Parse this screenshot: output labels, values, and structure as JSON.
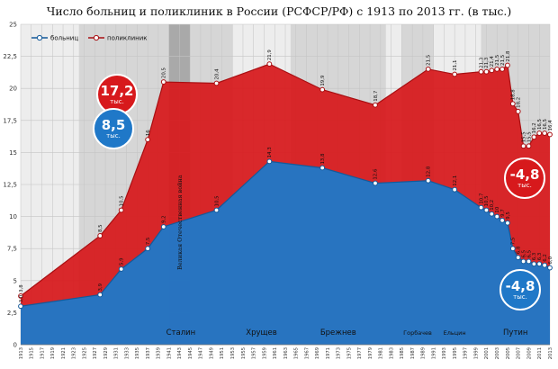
{
  "chart_data": {
    "type": "area",
    "title": "Число больниц и поликлиник в России (РСФСР/РФ) с 1913 по 2013 гг. (в тыс.)",
    "ylim": [
      0,
      25
    ],
    "yticks": [
      "0",
      "2,5",
      "5",
      "7,5",
      "10",
      "12,5",
      "15",
      "17,5",
      "20",
      "22,5",
      "25"
    ],
    "xlim": [
      1913,
      2013
    ],
    "xticks": [
      "1913",
      "1915",
      "1917",
      "1919",
      "1921",
      "1923",
      "1925",
      "1927",
      "1929",
      "1931",
      "1933",
      "1935",
      "1937",
      "1939",
      "1941",
      "1943",
      "1945",
      "1947",
      "1949",
      "1951",
      "1953",
      "1955",
      "1957",
      "1959",
      "1961",
      "1963",
      "1965",
      "1967",
      "1969",
      "1971",
      "1973",
      "1975",
      "1977",
      "1979",
      "1981",
      "1983",
      "1985",
      "1987",
      "1989",
      "1991",
      "1993",
      "1995",
      "1997",
      "1999",
      "2001",
      "2003",
      "2005",
      "2007",
      "2009",
      "2011",
      "2013"
    ],
    "grid": true,
    "legend": {
      "placement": "top-left",
      "entries": [
        "больниц",
        "поликлиник"
      ]
    },
    "series": [
      {
        "name": "больниц",
        "color": "#1f78c8",
        "x": [
          1913,
          1928,
          1932,
          1937,
          1940,
          1950,
          1960,
          1970,
          1980,
          1990,
          1995,
          2000,
          2001,
          2002,
          2003,
          2004,
          2005,
          2006,
          2007,
          2008,
          2009,
          2010,
          2011,
          2012,
          2013
        ],
        "values": [
          3.0,
          3.9,
          5.9,
          7.5,
          9.2,
          10.5,
          14.3,
          13.8,
          12.6,
          12.8,
          12.1,
          10.7,
          10.5,
          10.2,
          10.0,
          9.7,
          9.5,
          7.5,
          6.8,
          6.5,
          6.5,
          6.3,
          6.3,
          6.2,
          6.0
        ],
        "labels": [
          "3,0",
          "3,9",
          "5,9",
          "7,5",
          "9,2",
          "10,5",
          "14,3",
          "13,8",
          "12,6",
          "12,8",
          "12,1",
          "10,7",
          "10,5",
          "10,2",
          "10",
          "9,7",
          "9,5",
          "7,5",
          "6,8",
          "6,5",
          "6,5",
          "6,3",
          "6,3",
          "6,2",
          "6,0"
        ]
      },
      {
        "name": "поликлиник",
        "color": "#d7191c",
        "x": [
          1913,
          1928,
          1932,
          1937,
          1940,
          1950,
          1960,
          1970,
          1980,
          1990,
          1995,
          2000,
          2001,
          2002,
          2003,
          2004,
          2005,
          2006,
          2007,
          2008,
          2009,
          2010,
          2011,
          2012,
          2013
        ],
        "values": [
          3.8,
          8.5,
          10.5,
          16.0,
          20.5,
          20.4,
          21.9,
          19.9,
          18.7,
          21.5,
          21.1,
          21.3,
          21.3,
          21.4,
          21.5,
          21.5,
          21.8,
          18.8,
          18.2,
          15.5,
          15.5,
          16.2,
          16.5,
          16.5,
          16.4
        ],
        "labels": [
          "3,8",
          "8,5",
          "10,5",
          "16",
          "20,5",
          "20,4",
          "21,9",
          "19,9",
          "18,7",
          "21,5",
          "21,1",
          "21,3",
          "21,3",
          "21,4",
          "21,5",
          "21,5",
          "21,8",
          "18,8",
          "18,2",
          "15,5",
          "15,5",
          "16,2",
          "16,5",
          "16,5",
          "16,4"
        ]
      }
    ],
    "eras": [
      {
        "label": "Сталин",
        "from": 1924,
        "to": 1953,
        "shade": true
      },
      {
        "label": "Хрущев",
        "from": 1953,
        "to": 1964,
        "shade": false
      },
      {
        "label": "Брежнев",
        "from": 1964,
        "to": 1982,
        "shade": true
      },
      {
        "label": "Горбачев",
        "from": 1985,
        "to": 1991,
        "shade": true
      },
      {
        "label": "Ельцин",
        "from": 1991,
        "to": 1999,
        "shade": false
      },
      {
        "label": "Путин",
        "from": 2000,
        "to": 2013,
        "shade": true
      }
    ],
    "war": {
      "label": "Великая Отечественная война",
      "from": 1941,
      "to": 1945
    },
    "annotations": [
      {
        "value": "17,2",
        "unit": "тыс.",
        "color": "#d7191c"
      },
      {
        "value": "8,5",
        "unit": "тыс.",
        "color": "#1f78c8"
      },
      {
        "value": "-4,8",
        "unit": "тыс.",
        "color": "#d7191c"
      },
      {
        "value": "-4,8",
        "unit": "тыс.",
        "color": "#1f78c8"
      }
    ]
  }
}
